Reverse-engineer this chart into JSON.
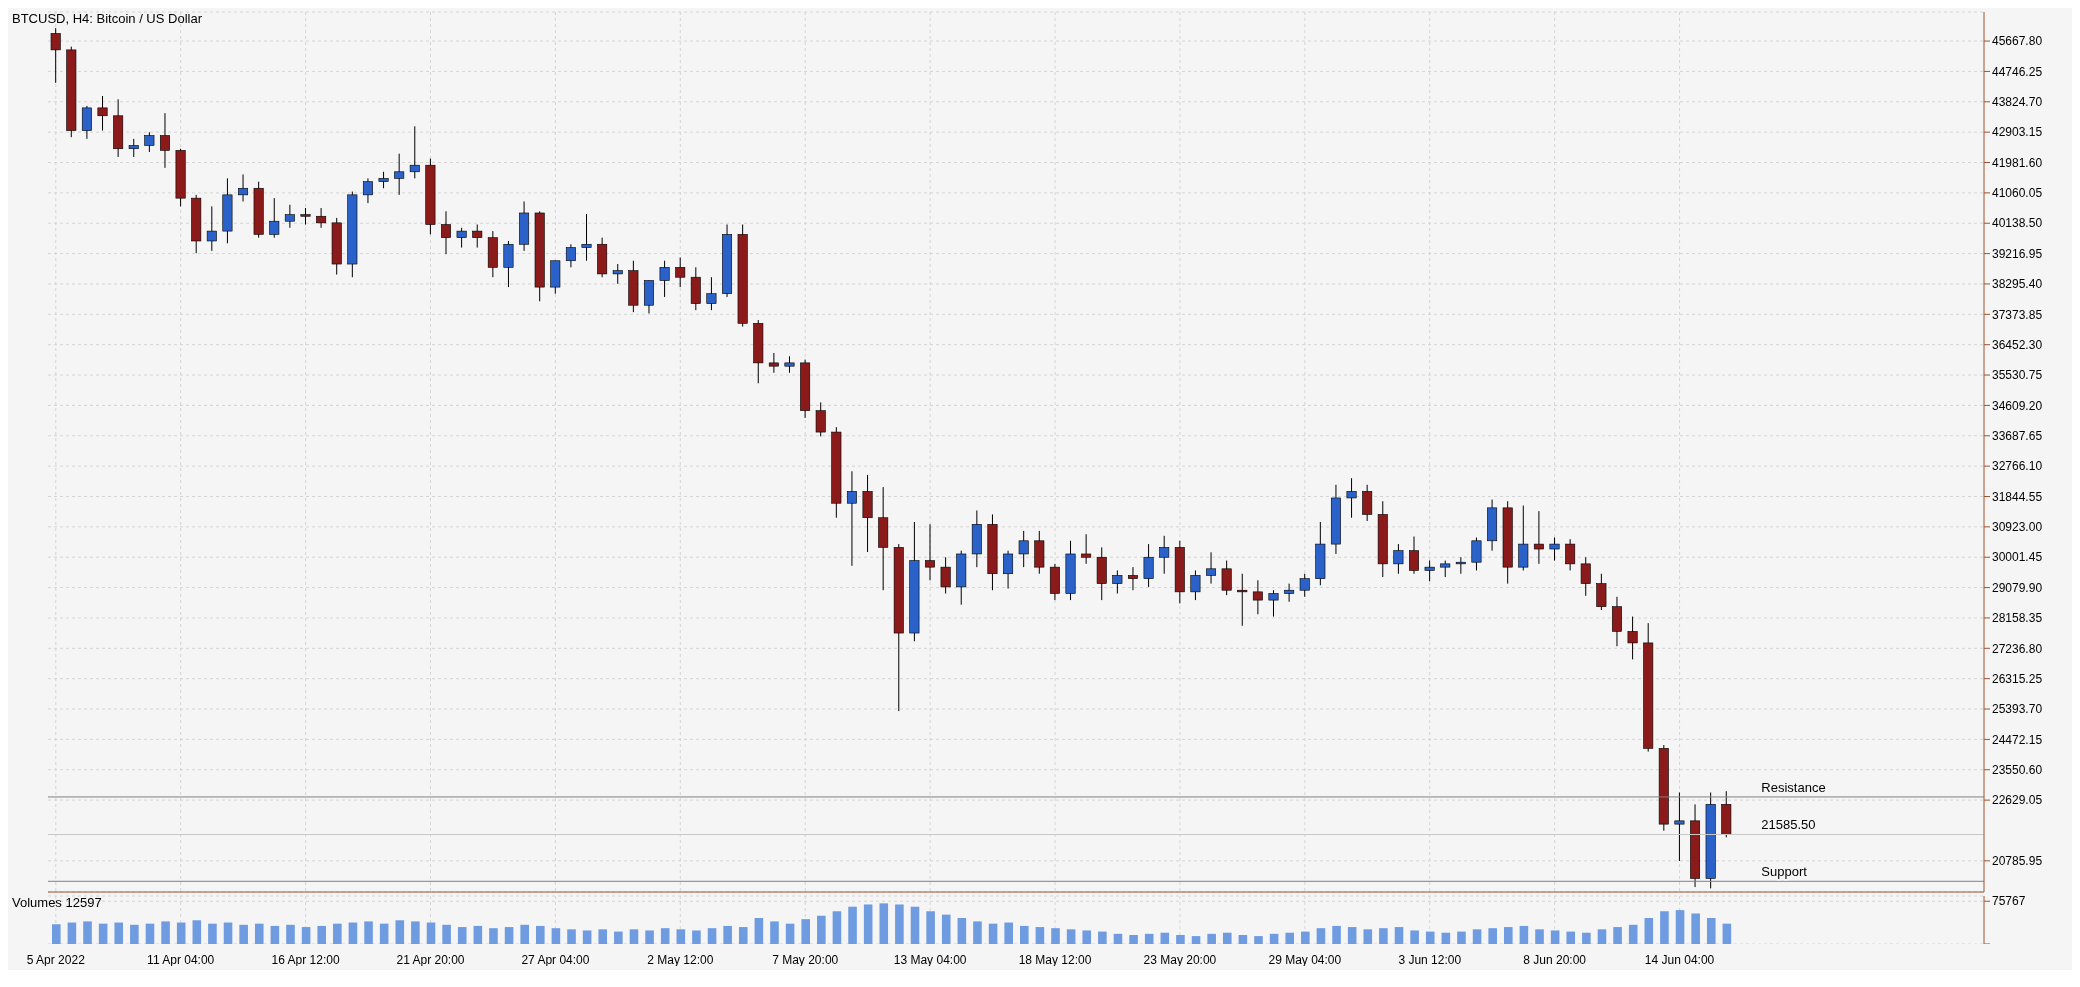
{
  "chart_data": [
    {
      "type": "candlestick",
      "title": "BTCUSD, H4:  Bitcoin / US Dollar",
      "categories": [
        "5 Apr 2022",
        null,
        null,
        null,
        null,
        null,
        null,
        null,
        "11 Apr 04:00",
        null,
        null,
        null,
        null,
        null,
        null,
        null,
        "16 Apr 12:00",
        null,
        null,
        null,
        null,
        null,
        null,
        null,
        "21 Apr 20:00",
        null,
        null,
        null,
        null,
        null,
        null,
        null,
        "27 Apr 04:00",
        null,
        null,
        null,
        null,
        null,
        null,
        null,
        "2 May 12:00",
        null,
        null,
        null,
        null,
        null,
        null,
        null,
        "7 May 20:00",
        null,
        null,
        null,
        null,
        null,
        null,
        null,
        "13 May 04:00",
        null,
        null,
        null,
        null,
        null,
        null,
        null,
        "18 May 12:00",
        null,
        null,
        null,
        null,
        null,
        null,
        null,
        "23 May 20:00",
        null,
        null,
        null,
        null,
        null,
        null,
        null,
        "29 May 04:00",
        null,
        null,
        null,
        null,
        null,
        null,
        null,
        "3 Jun 12:00",
        null,
        null,
        null,
        null,
        null,
        null,
        null,
        "8 Jun 20:00",
        null,
        null,
        null,
        null,
        null,
        null,
        null,
        "14 Jun 04:00",
        null,
        null,
        null,
        null,
        null,
        null,
        null,
        null,
        null,
        null,
        null,
        null,
        null,
        null,
        null,
        null,
        null,
        null,
        null
      ],
      "ohlc": [
        [
          45900,
          46060,
          44400,
          45400
        ],
        [
          45400,
          45500,
          42750,
          42950
        ],
        [
          42950,
          43700,
          42700,
          43640
        ],
        [
          43640,
          44000,
          42950,
          43400
        ],
        [
          43400,
          43900,
          42150,
          42400
        ],
        [
          42400,
          42700,
          42150,
          42500
        ],
        [
          42500,
          42900,
          42300,
          42800
        ],
        [
          42800,
          43480,
          41820,
          42350
        ],
        [
          42350,
          42400,
          40650,
          40900
        ],
        [
          40900,
          41000,
          39230,
          39600
        ],
        [
          39600,
          40650,
          39300,
          39900
        ],
        [
          39900,
          41500,
          39530,
          41000
        ],
        [
          41000,
          41620,
          40800,
          41200
        ],
        [
          41200,
          41400,
          39700,
          39800
        ],
        [
          39800,
          40900,
          39700,
          40200
        ],
        [
          40200,
          40700,
          40000,
          40400
        ],
        [
          40400,
          40600,
          40100,
          40350
        ],
        [
          40350,
          40600,
          40000,
          40150
        ],
        [
          40150,
          40300,
          38580,
          38900
        ],
        [
          38900,
          41100,
          38500,
          41000
        ],
        [
          41000,
          41500,
          40750,
          41400
        ],
        [
          41400,
          41700,
          41200,
          41500
        ],
        [
          41500,
          42250,
          41000,
          41700
        ],
        [
          41700,
          43080,
          41500,
          41900
        ],
        [
          41900,
          42100,
          39800,
          40100
        ],
        [
          40100,
          40500,
          39200,
          39700
        ],
        [
          39700,
          40000,
          39400,
          39900
        ],
        [
          39900,
          40100,
          39400,
          39700
        ],
        [
          39700,
          39900,
          38500,
          38800
        ],
        [
          38800,
          39600,
          38200,
          39500
        ],
        [
          39500,
          40800,
          39300,
          40450
        ],
        [
          40450,
          40500,
          37770,
          38200
        ],
        [
          38200,
          39000,
          38000,
          39000
        ],
        [
          39000,
          39500,
          38800,
          39400
        ],
        [
          39400,
          40420,
          39000,
          39500
        ],
        [
          39500,
          39700,
          38500,
          38600
        ],
        [
          38600,
          38900,
          38300,
          38700
        ],
        [
          38700,
          39000,
          37440,
          37650
        ],
        [
          37650,
          38400,
          37400,
          38400
        ],
        [
          38400,
          39000,
          37900,
          38800
        ],
        [
          38800,
          39100,
          38200,
          38500
        ],
        [
          38500,
          38800,
          37500,
          37700
        ],
        [
          37700,
          38500,
          37500,
          38000
        ],
        [
          38000,
          40100,
          37900,
          39800
        ],
        [
          39800,
          40100,
          37000,
          37100
        ],
        [
          37100,
          37200,
          35280,
          35900
        ],
        [
          35900,
          36200,
          35600,
          35800
        ],
        [
          35800,
          36100,
          35600,
          35900
        ],
        [
          35900,
          36000,
          34230,
          34450
        ],
        [
          34450,
          34700,
          33670,
          33800
        ],
        [
          33800,
          33950,
          31200,
          31640
        ],
        [
          31640,
          32610,
          29740,
          32000
        ],
        [
          32000,
          32500,
          30160,
          31200
        ],
        [
          31200,
          32130,
          29000,
          30300
        ],
        [
          30300,
          30400,
          25330,
          27700
        ],
        [
          27700,
          31070,
          27450,
          29900
        ],
        [
          29900,
          31000,
          29300,
          29700
        ],
        [
          29700,
          30000,
          28900,
          29100
        ],
        [
          29100,
          30200,
          28560,
          30100
        ],
        [
          30100,
          31420,
          29700,
          31000
        ],
        [
          31000,
          31300,
          29000,
          29500
        ],
        [
          29500,
          30200,
          29050,
          30100
        ],
        [
          30100,
          30800,
          29700,
          30500
        ],
        [
          30500,
          30800,
          29500,
          29700
        ],
        [
          29700,
          29800,
          28700,
          28900
        ],
        [
          28900,
          30500,
          28700,
          30100
        ],
        [
          30100,
          30700,
          29800,
          30000
        ],
        [
          30000,
          30300,
          28700,
          29200
        ],
        [
          29200,
          29600,
          28900,
          29450
        ],
        [
          29450,
          29700,
          29000,
          29350
        ],
        [
          29350,
          30400,
          29100,
          30000
        ],
        [
          30000,
          30650,
          29500,
          30300
        ],
        [
          30300,
          30500,
          28600,
          28950
        ],
        [
          28950,
          29600,
          28700,
          29450
        ],
        [
          29450,
          30150,
          29200,
          29650
        ],
        [
          29650,
          29900,
          28850,
          29000
        ],
        [
          29000,
          29500,
          27920,
          28950
        ],
        [
          28950,
          29300,
          28270,
          28700
        ],
        [
          28700,
          29000,
          28200,
          28900
        ],
        [
          28900,
          29200,
          28650,
          29000
        ],
        [
          29000,
          29500,
          28800,
          29350
        ],
        [
          29350,
          31070,
          29150,
          30400
        ],
        [
          30400,
          32200,
          30100,
          31800
        ],
        [
          31800,
          32400,
          31200,
          32000
        ],
        [
          32000,
          32200,
          31100,
          31300
        ],
        [
          31300,
          31700,
          29400,
          29800
        ],
        [
          29800,
          30400,
          29500,
          30200
        ],
        [
          30200,
          30630,
          29500,
          29600
        ],
        [
          29600,
          29900,
          29270,
          29700
        ],
        [
          29700,
          29900,
          29400,
          29800
        ],
        [
          29800,
          30000,
          29500,
          29850
        ],
        [
          29850,
          30600,
          29600,
          30500
        ],
        [
          30500,
          31750,
          30200,
          31500
        ],
        [
          31500,
          31700,
          29200,
          29700
        ],
        [
          29700,
          31570,
          29600,
          30400
        ],
        [
          30400,
          31400,
          29800,
          30250
        ],
        [
          30250,
          30600,
          29900,
          30400
        ],
        [
          30400,
          30550,
          29600,
          29800
        ],
        [
          29800,
          30000,
          28830,
          29200
        ],
        [
          29200,
          29500,
          28400,
          28500
        ],
        [
          28500,
          28800,
          27300,
          27750
        ],
        [
          27750,
          28200,
          26900,
          27400
        ],
        [
          27400,
          28000,
          24100,
          24200
        ],
        [
          24200,
          24300,
          21700,
          21900
        ],
        [
          21900,
          22860,
          20780,
          22000
        ],
        [
          22000,
          22500,
          19990,
          20250
        ],
        [
          20250,
          22860,
          19950,
          22500
        ],
        [
          22500,
          22900,
          21500,
          21585.5
        ],
        null,
        null,
        null,
        null,
        null,
        null,
        null,
        null,
        null,
        null,
        null,
        null,
        null,
        null,
        null,
        null
      ],
      "colors": [
        "#8b1a1a",
        "#8b1a1a",
        "#2a62c9",
        "#8b1a1a",
        "#8b1a1a",
        "#2a62c9",
        "#2a62c9",
        "#8b1a1a",
        "#8b1a1a",
        "#8b1a1a",
        "#2a62c9",
        "#2a62c9",
        "#2a62c9",
        "#8b1a1a",
        "#2a62c9",
        "#2a62c9",
        "#8b1a1a",
        "#8b1a1a",
        "#8b1a1a",
        "#2a62c9",
        "#2a62c9",
        "#2a62c9",
        "#2a62c9",
        "#2a62c9",
        "#8b1a1a",
        "#8b1a1a",
        "#2a62c9",
        "#8b1a1a",
        "#8b1a1a",
        "#2a62c9",
        "#2a62c9",
        "#8b1a1a",
        "#2a62c9",
        "#2a62c9",
        "#2a62c9",
        "#8b1a1a",
        "#2a62c9",
        "#8b1a1a",
        "#2a62c9",
        "#2a62c9",
        "#8b1a1a",
        "#8b1a1a",
        "#2a62c9",
        "#2a62c9",
        "#8b1a1a",
        "#8b1a1a",
        "#8b1a1a",
        "#2a62c9",
        "#8b1a1a",
        "#8b1a1a",
        "#8b1a1a",
        "#2a62c9",
        "#8b1a1a",
        "#8b1a1a",
        "#8b1a1a",
        "#2a62c9",
        "#8b1a1a",
        "#8b1a1a",
        "#2a62c9",
        "#2a62c9",
        "#8b1a1a",
        "#2a62c9",
        "#2a62c9",
        "#8b1a1a",
        "#8b1a1a",
        "#2a62c9",
        "#8b1a1a",
        "#8b1a1a",
        "#2a62c9",
        "#8b1a1a",
        "#2a62c9",
        "#2a62c9",
        "#8b1a1a",
        "#2a62c9",
        "#2a62c9",
        "#8b1a1a",
        "#8b1a1a",
        "#8b1a1a",
        "#2a62c9",
        "#2a62c9",
        "#2a62c9",
        "#2a62c9",
        "#2a62c9",
        "#2a62c9",
        "#8b1a1a",
        "#8b1a1a",
        "#2a62c9",
        "#8b1a1a",
        "#2a62c9",
        "#2a62c9",
        "#2a62c9",
        "#2a62c9",
        "#2a62c9",
        "#8b1a1a",
        "#2a62c9",
        "#8b1a1a",
        "#2a62c9",
        "#8b1a1a",
        "#8b1a1a",
        "#8b1a1a",
        "#8b1a1a",
        "#8b1a1a",
        "#8b1a1a",
        "#8b1a1a",
        "#2a62c9",
        "#8b1a1a",
        "#2a62c9",
        "#8b1a1a",
        null,
        null,
        null,
        null,
        null,
        null,
        null,
        null,
        null,
        null,
        null,
        null,
        null,
        null,
        null,
        null
      ],
      "ylim": [
        19840,
        46550
      ],
      "yticks": [
        {
          "value": 20785.95,
          "label": "20785.95"
        },
        {
          "value": 22629.05,
          "label": "22629.05"
        },
        {
          "value": 23550.6,
          "label": "23550.60"
        },
        {
          "value": 24472.15,
          "label": "24472.15"
        },
        {
          "value": 25393.7,
          "label": "25393.70"
        },
        {
          "value": 26315.25,
          "label": "26315.25"
        },
        {
          "value": 27236.8,
          "label": "27236.80"
        },
        {
          "value": 28158.35,
          "label": "28158.35"
        },
        {
          "value": 29079.9,
          "label": "29079.90"
        },
        {
          "value": 30001.45,
          "label": "30001.45"
        },
        {
          "value": 30923,
          "label": "30923.00"
        },
        {
          "value": 31844.55,
          "label": "31844.55"
        },
        {
          "value": 32766.1,
          "label": "32766.10"
        },
        {
          "value": 33687.65,
          "label": "33687.65"
        },
        {
          "value": 34609.2,
          "label": "34609.20"
        },
        {
          "value": 35530.75,
          "label": "35530.75"
        },
        {
          "value": 36452.3,
          "label": "36452.30"
        },
        {
          "value": 37373.85,
          "label": "37373.85"
        },
        {
          "value": 38295.4,
          "label": "38295.40"
        },
        {
          "value": 39216.95,
          "label": "39216.95"
        },
        {
          "value": 40138.5,
          "label": "40138.50"
        },
        {
          "value": 41060.05,
          "label": "41060.05"
        },
        {
          "value": 41981.6,
          "label": "41981.60"
        },
        {
          "value": 42903.15,
          "label": "42903.15"
        },
        {
          "value": 43824.7,
          "label": "43824.70"
        },
        {
          "value": 44746.25,
          "label": "44746.25"
        },
        {
          "value": 45667.8,
          "label": "45667.80"
        }
      ],
      "ref_lines": [
        {
          "axis": "y",
          "value": 22725,
          "label": "Resistance",
          "color": "#808080"
        },
        {
          "axis": "y",
          "value": 20165,
          "label": "Support",
          "color": "#808080"
        },
        {
          "axis": "y",
          "value": 21585.5,
          "label": "21585.50",
          "color": "#c8c8c8"
        }
      ],
      "grid": true
    },
    {
      "type": "bar",
      "title": "Volumes 12597",
      "categories": [
        null,
        null,
        null,
        null,
        null,
        null,
        null,
        null,
        null,
        null,
        null,
        null,
        null,
        null,
        null,
        null,
        null,
        null,
        null,
        null,
        null,
        null,
        null,
        null,
        null,
        null,
        null,
        null,
        null,
        null,
        null,
        null,
        null,
        null,
        null,
        null,
        null,
        null,
        null,
        null,
        null,
        null,
        null,
        null,
        null,
        null,
        null,
        null,
        null,
        null,
        null,
        null,
        null,
        null,
        null,
        null,
        null,
        null,
        null,
        null,
        null,
        null,
        null,
        null,
        null,
        null,
        null,
        null,
        null,
        null,
        null,
        null,
        null,
        null,
        null,
        null,
        null,
        null,
        null,
        null,
        null,
        null,
        null,
        null,
        null,
        null,
        null,
        null,
        null,
        null,
        null,
        null,
        null,
        null,
        null,
        null,
        null,
        null,
        null,
        null,
        null,
        null,
        null,
        null,
        null,
        null,
        null,
        null,
        null,
        null,
        null,
        null,
        null,
        null,
        null,
        null,
        null,
        null,
        null,
        null,
        null,
        null,
        null,
        null
      ],
      "tick_labels": "y",
      "values": [
        35000,
        38000,
        40000,
        36000,
        38000,
        34000,
        36000,
        40000,
        38000,
        42000,
        36000,
        38000,
        34000,
        36000,
        32000,
        34000,
        30000,
        32000,
        36000,
        38000,
        40000,
        36000,
        42000,
        40000,
        38000,
        34000,
        30000,
        32000,
        28000,
        30000,
        34000,
        32000,
        28000,
        26000,
        24000,
        26000,
        22000,
        26000,
        24000,
        28000,
        26000,
        24000,
        28000,
        32000,
        30000,
        46000,
        40000,
        36000,
        44000,
        50000,
        58000,
        66000,
        70000,
        72000,
        70000,
        66000,
        58000,
        52000,
        46000,
        40000,
        36000,
        38000,
        32000,
        30000,
        28000,
        26000,
        24000,
        22000,
        18000,
        16000,
        18000,
        20000,
        16000,
        14000,
        18000,
        20000,
        16000,
        14000,
        18000,
        20000,
        22000,
        28000,
        32000,
        30000,
        26000,
        28000,
        30000,
        24000,
        22000,
        20000,
        22000,
        26000,
        28000,
        30000,
        32000,
        26000,
        24000,
        22000,
        20000,
        26000,
        30000,
        34000,
        46000,
        58000,
        60000,
        54000,
        46000,
        36000,
        null,
        null,
        null,
        null,
        null,
        null,
        null,
        null,
        null,
        null,
        null,
        null,
        null,
        null,
        null,
        null
      ],
      "color": "#6f9be0",
      "ylim": [
        0,
        85000
      ],
      "yticks": [
        0,
        75767
      ],
      "grid": true
    }
  ]
}
